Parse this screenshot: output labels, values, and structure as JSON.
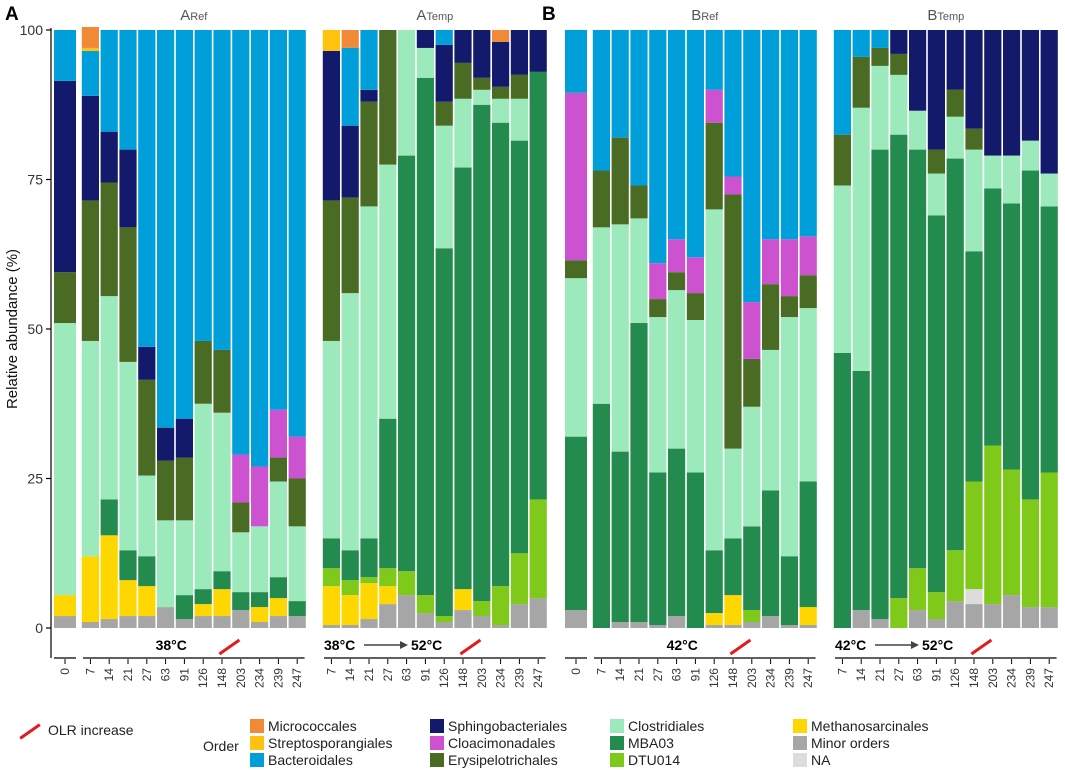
{
  "chart_data": {
    "type": "bar",
    "stacked": true,
    "ylabel": "Relative abundance (%)",
    "ylim": [
      0,
      100
    ],
    "yticks": [
      0,
      25,
      50,
      75,
      100
    ],
    "legend_title": "Order",
    "olr_label": "OLR increase",
    "orders": [
      {
        "name": "Minor orders",
        "color": "#a6a6a6"
      },
      {
        "name": "Methanosarcinales",
        "color": "#ffd700"
      },
      {
        "name": "Streptosporangiales",
        "color": "#ffc20e"
      },
      {
        "name": "DTU014",
        "color": "#7fc91a"
      },
      {
        "name": "MBA03",
        "color": "#238b4e"
      },
      {
        "name": "Clostridiales",
        "color": "#9ce9bc"
      },
      {
        "name": "Erysipelotrichales",
        "color": "#4a6b23"
      },
      {
        "name": "Cloacimonadales",
        "color": "#cc52d0"
      },
      {
        "name": "Micrococcales",
        "color": "#f08a36"
      },
      {
        "name": "Sphingobacteriales",
        "color": "#141a6b"
      },
      {
        "name": "Bacteroidales",
        "color": "#009fd9"
      },
      {
        "name": "NA",
        "color": "#dcdcdc"
      }
    ],
    "panel_letters": [
      "A",
      "B"
    ],
    "panels": [
      {
        "id": "A0",
        "title": "",
        "title_sub": "",
        "temp_label": "",
        "temp_from": "",
        "temp_to": "",
        "days": [
          "0"
        ],
        "bars": [
          {
            "Minor orders": 2,
            "Methanosarcinales": 3.5,
            "Clostridiales": 45.5,
            "Erysipelotrichales": 8.5,
            "Sphingobacteriales": 32,
            "Bacteroidales": 8.5
          }
        ]
      },
      {
        "id": "ARef",
        "title": "A",
        "title_sub": "Ref",
        "temp_label": "38°C",
        "temp_from": "",
        "temp_to": "",
        "olr_after_index": 7,
        "days": [
          "7",
          "14",
          "21",
          "27",
          "63",
          "91",
          "126",
          "148",
          "203",
          "234",
          "239",
          "247"
        ],
        "bars": [
          {
            "Minor orders": 1,
            "Methanosarcinales": 11,
            "Clostridiales": 36,
            "Erysipelotrichales": 23.5,
            "Sphingobacteriales": 17.5,
            "Bacteroidales": 7.5,
            "Micrococcales": 3.5,
            "Streptosporangiales": 0.5
          },
          {
            "Minor orders": 1.5,
            "Methanosarcinales": 14,
            "MBA03": 6,
            "Clostridiales": 34,
            "Erysipelotrichales": 19,
            "Sphingobacteriales": 8.5,
            "Bacteroidales": 17
          },
          {
            "Minor orders": 2,
            "Methanosarcinales": 6,
            "MBA03": 5,
            "Clostridiales": 31.5,
            "Erysipelotrichales": 22.5,
            "Sphingobacteriales": 13,
            "Bacteroidales": 20
          },
          {
            "Minor orders": 2,
            "Methanosarcinales": 5,
            "MBA03": 5,
            "Clostridiales": 13.5,
            "Erysipelotrichales": 16,
            "Sphingobacteriales": 5.5,
            "Bacteroidales": 53
          },
          {
            "Minor orders": 3.5,
            "Clostridiales": 14.5,
            "Erysipelotrichales": 10,
            "Sphingobacteriales": 5.5,
            "Bacteroidales": 66.5
          },
          {
            "Minor orders": 1.5,
            "MBA03": 4,
            "Clostridiales": 12.5,
            "Erysipelotrichales": 10.5,
            "Sphingobacteriales": 6.5,
            "Bacteroidales": 65
          },
          {
            "Minor orders": 2,
            "Methanosarcinales": 2,
            "MBA03": 2.5,
            "Clostridiales": 31,
            "Erysipelotrichales": 10.5,
            "Bacteroidales": 52
          },
          {
            "Minor orders": 2,
            "Methanosarcinales": 4.5,
            "MBA03": 3,
            "Clostridiales": 26.5,
            "Erysipelotrichales": 10.5,
            "Bacteroidales": 53.5
          },
          {
            "Minor orders": 3,
            "MBA03": 3,
            "Clostridiales": 10,
            "Erysipelotrichales": 5,
            "Cloacimonadales": 8,
            "Bacteroidales": 71
          },
          {
            "Minor orders": 1,
            "Methanosarcinales": 2.5,
            "MBA03": 2.5,
            "Clostridiales": 11,
            "Cloacimonadales": 10,
            "Bacteroidales": 73
          },
          {
            "Minor orders": 2,
            "Methanosarcinales": 3,
            "MBA03": 3.5,
            "Clostridiales": 16,
            "Erysipelotrichales": 4,
            "Cloacimonadales": 8,
            "Bacteroidales": 63.5
          },
          {
            "Minor orders": 2,
            "MBA03": 2.5,
            "Clostridiales": 12.5,
            "Erysipelotrichales": 8,
            "Cloacimonadales": 7,
            "Bacteroidales": 68
          }
        ]
      },
      {
        "id": "ATemp",
        "title": "A",
        "title_sub": "Temp",
        "temp_label": "",
        "temp_from": "38°C",
        "temp_to": "52°C",
        "olr_after_index": 7,
        "days": [
          "7",
          "14",
          "21",
          "27",
          "63",
          "91",
          "126",
          "148",
          "203",
          "234",
          "239",
          "247"
        ],
        "bars": [
          {
            "Minor orders": 0.5,
            "Methanosarcinales": 6.5,
            "DTU014": 3,
            "MBA03": 5,
            "Clostridiales": 33,
            "Erysipelotrichales": 23.5,
            "Sphingobacteriales": 25,
            "Streptosporangiales": 3.5
          },
          {
            "Minor orders": 0.5,
            "Methanosarcinales": 5,
            "DTU014": 2.5,
            "MBA03": 5,
            "Clostridiales": 43,
            "Erysipelotrichales": 16,
            "Sphingobacteriales": 12,
            "Bacteroidales": 13,
            "Micrococcales": 3
          },
          {
            "Minor orders": 1.5,
            "Methanosarcinales": 6,
            "DTU014": 1,
            "MBA03": 6.5,
            "Clostridiales": 55.5,
            "Erysipelotrichales": 17.5,
            "Sphingobacteriales": 2,
            "Bacteroidales": 10
          },
          {
            "Minor orders": 4,
            "Methanosarcinales": 3,
            "DTU014": 3,
            "MBA03": 25,
            "Clostridiales": 42.5,
            "Erysipelotrichales": 22.5
          },
          {
            "Minor orders": 5.5,
            "DTU014": 4,
            "MBA03": 69.5,
            "Clostridiales": 21
          },
          {
            "Minor orders": 2.5,
            "DTU014": 3,
            "MBA03": 86.5,
            "Clostridiales": 5,
            "Sphingobacteriales": 3
          },
          {
            "Minor orders": 1,
            "DTU014": 1,
            "MBA03": 61.5,
            "Clostridiales": 20.5,
            "Erysipelotrichales": 4,
            "Sphingobacteriales": 9.5,
            "Bacteroidales": 2.5
          },
          {
            "Minor orders": 3,
            "Methanosarcinales": 3.5,
            "MBA03": 70.5,
            "Clostridiales": 11.5,
            "Erysipelotrichales": 6,
            "Sphingobacteriales": 5.5
          },
          {
            "Minor orders": 2,
            "DTU014": 2.5,
            "MBA03": 83,
            "Clostridiales": 2.5,
            "Erysipelotrichales": 2,
            "Sphingobacteriales": 8
          },
          {
            "Minor orders": 0.5,
            "DTU014": 6.5,
            "MBA03": 77.5,
            "Clostridiales": 4,
            "Erysipelotrichales": 2,
            "Sphingobacteriales": 7.5,
            "Micrococcales": 2
          },
          {
            "Minor orders": 4,
            "DTU014": 8.5,
            "MBA03": 69,
            "Clostridiales": 7,
            "Erysipelotrichales": 4,
            "Sphingobacteriales": 7.5
          },
          {
            "Minor orders": 5,
            "DTU014": 16.5,
            "MBA03": 71.5,
            "Sphingobacteriales": 7
          }
        ]
      },
      {
        "id": "B0",
        "title": "",
        "title_sub": "",
        "temp_label": "",
        "temp_from": "",
        "temp_to": "",
        "days": [
          "0"
        ],
        "bars": [
          {
            "Minor orders": 3,
            "MBA03": 29,
            "Clostridiales": 26.5,
            "Erysipelotrichales": 3,
            "Cloacimonadales": 28,
            "Bacteroidales": 10.5
          }
        ]
      },
      {
        "id": "BRef",
        "title": "B",
        "title_sub": "Ref",
        "temp_label": "42°C",
        "temp_from": "",
        "temp_to": "",
        "olr_after_index": 7,
        "days": [
          "7",
          "14",
          "21",
          "27",
          "63",
          "91",
          "126",
          "148",
          "203",
          "234",
          "239",
          "247"
        ],
        "bars": [
          {
            "MBA03": 37.5,
            "Clostridiales": 29.5,
            "Erysipelotrichales": 9.5,
            "Bacteroidales": 23.5
          },
          {
            "Minor orders": 1,
            "MBA03": 28.5,
            "Clostridiales": 38,
            "Erysipelotrichales": 14.5,
            "Bacteroidales": 18
          },
          {
            "Minor orders": 1,
            "MBA03": 50,
            "Clostridiales": 17.5,
            "Erysipelotrichales": 5.5,
            "Bacteroidales": 26
          },
          {
            "Minor orders": 0.5,
            "MBA03": 25.5,
            "Clostridiales": 26,
            "Erysipelotrichales": 3,
            "Cloacimonadales": 6,
            "Bacteroidales": 39
          },
          {
            "Minor orders": 2,
            "MBA03": 28,
            "Clostridiales": 26.5,
            "Erysipelotrichales": 3,
            "Cloacimonadales": 5.5,
            "Bacteroidales": 35
          },
          {
            "MBA03": 26,
            "Clostridiales": 25.5,
            "Erysipelotrichales": 4.5,
            "Cloacimonadales": 6,
            "Bacteroidales": 38
          },
          {
            "Minor orders": 0.5,
            "Methanosarcinales": 2,
            "MBA03": 10.5,
            "Clostridiales": 57,
            "Erysipelotrichales": 14.5,
            "Cloacimonadales": 5.5,
            "Bacteroidales": 10
          },
          {
            "Minor orders": 0.5,
            "Methanosarcinales": 5,
            "MBA03": 9.5,
            "Clostridiales": 15,
            "Erysipelotrichales": 42.5,
            "Cloacimonadales": 3,
            "Bacteroidales": 24.5
          },
          {
            "Minor orders": 1,
            "DTU014": 2,
            "MBA03": 14,
            "Clostridiales": 20,
            "Erysipelotrichales": 8,
            "Cloacimonadales": 9.5,
            "Bacteroidales": 45.5
          },
          {
            "Minor orders": 2,
            "MBA03": 21,
            "Clostridiales": 23.5,
            "Erysipelotrichales": 11,
            "Cloacimonadales": 7.5,
            "Bacteroidales": 35
          },
          {
            "Minor orders": 0.5,
            "MBA03": 11.5,
            "Clostridiales": 40,
            "Erysipelotrichales": 3.5,
            "Cloacimonadales": 9.5,
            "Bacteroidales": 35
          },
          {
            "Minor orders": 0.5,
            "Methanosarcinales": 3,
            "MBA03": 21,
            "Clostridiales": 29,
            "Erysipelotrichales": 5.5,
            "Cloacimonadales": 6.5,
            "Bacteroidales": 34.5
          }
        ]
      },
      {
        "id": "BTemp",
        "title": "B",
        "title_sub": "Temp",
        "temp_label": "",
        "temp_from": "42°C",
        "temp_to": "52°C",
        "olr_after_index": 7,
        "days": [
          "7",
          "14",
          "21",
          "27",
          "63",
          "91",
          "126",
          "148",
          "203",
          "234",
          "239",
          "247"
        ],
        "bars": [
          {
            "MBA03": 46,
            "Clostridiales": 28,
            "Erysipelotrichales": 8.5,
            "Bacteroidales": 17.5
          },
          {
            "Minor orders": 3,
            "MBA03": 40,
            "Clostridiales": 44,
            "Erysipelotrichales": 8.5,
            "Bacteroidales": 4.5
          },
          {
            "Minor orders": 1.5,
            "MBA03": 78.5,
            "Clostridiales": 14,
            "Erysipelotrichales": 3,
            "Bacteroidales": 3
          },
          {
            "DTU014": 5,
            "MBA03": 77.5,
            "Clostridiales": 10,
            "Erysipelotrichales": 3.5,
            "Sphingobacteriales": 4
          },
          {
            "Minor orders": 3,
            "DTU014": 7,
            "MBA03": 70,
            "Clostridiales": 6.5,
            "Sphingobacteriales": 13.5
          },
          {
            "Minor orders": 1.5,
            "DTU014": 4.5,
            "MBA03": 63,
            "Clostridiales": 7,
            "Erysipelotrichales": 4,
            "Sphingobacteriales": 20
          },
          {
            "Minor orders": 4.5,
            "DTU014": 8.5,
            "MBA03": 65.5,
            "Clostridiales": 7,
            "Erysipelotrichales": 4.5,
            "Sphingobacteriales": 10
          },
          {
            "Minor orders": 4,
            "NA": 2.5,
            "DTU014": 18,
            "MBA03": 38.5,
            "Clostridiales": 17,
            "Erysipelotrichales": 3.5,
            "Sphingobacteriales": 16.5
          },
          {
            "Minor orders": 4,
            "DTU014": 26.5,
            "MBA03": 43,
            "Clostridiales": 5.5,
            "Sphingobacteriales": 21
          },
          {
            "Minor orders": 5.5,
            "DTU014": 21,
            "MBA03": 44.5,
            "Clostridiales": 8,
            "Sphingobacteriales": 21
          },
          {
            "Minor orders": 3.5,
            "DTU014": 18,
            "MBA03": 55,
            "Clostridiales": 5,
            "Sphingobacteriales": 18.5
          },
          {
            "Minor orders": 3.5,
            "DTU014": 22.5,
            "MBA03": 44.5,
            "Clostridiales": 5.5,
            "Sphingobacteriales": 24
          }
        ]
      }
    ]
  },
  "legend": {
    "columns": [
      [
        "Micrococcales",
        "Streptosporangiales",
        "Bacteroidales"
      ],
      [
        "Sphingobacteriales",
        "Cloacimonadales",
        "Erysipelotrichales"
      ],
      [
        "Clostridiales",
        "MBA03",
        "DTU014"
      ],
      [
        "Methanosarcinales",
        "Minor orders",
        "NA"
      ]
    ]
  }
}
